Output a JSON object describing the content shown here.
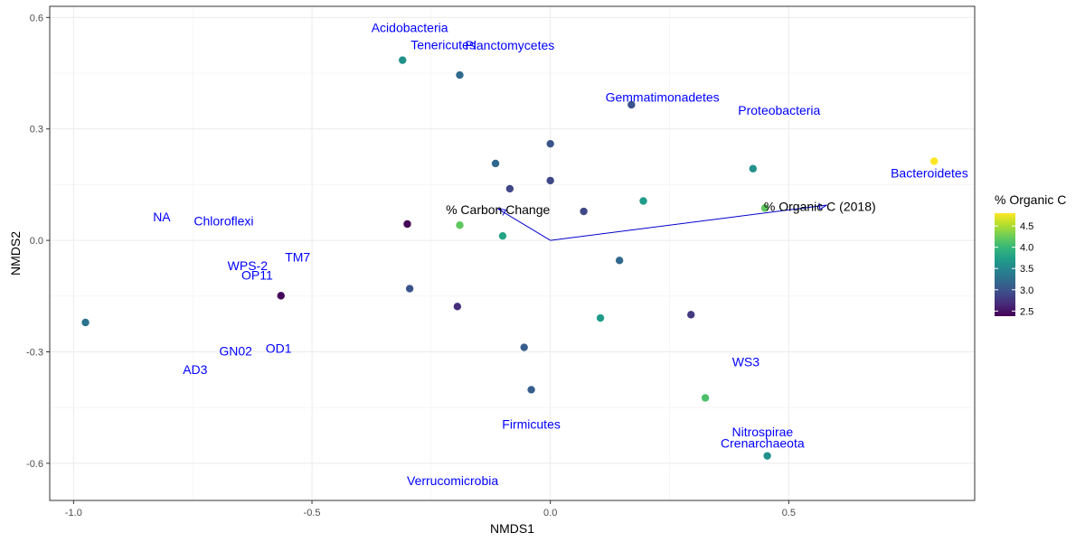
{
  "chart_data": {
    "type": "scatter",
    "xlabel": "NMDS1",
    "ylabel": "NMDS2",
    "xlim": [
      -1.05,
      0.89
    ],
    "ylim": [
      -0.7,
      0.63
    ],
    "xticks": [
      -1.0,
      -0.5,
      0.0,
      0.5
    ],
    "xtick_labels": [
      "-1.0",
      "-0.5",
      "0.0",
      "0.5"
    ],
    "yticks": [
      -0.6,
      -0.3,
      0.0,
      0.3,
      0.6
    ],
    "ytick_labels": [
      "-0.6",
      "-0.3",
      "0.0",
      "0.3",
      "0.6"
    ],
    "grid": true,
    "legend": {
      "title": "% Organic C",
      "placement": "right",
      "min": 2.38,
      "max": 4.8,
      "ticks": [
        2.5,
        3.0,
        3.5,
        4.0,
        4.5
      ],
      "tick_labels": [
        "2.5",
        "3.0",
        "3.5",
        "4.0",
        "4.5"
      ],
      "colors": [
        "#440154",
        "#482878",
        "#3E4A89",
        "#31688E",
        "#26828E",
        "#1F9E89",
        "#35B779",
        "#6DCD59",
        "#B4DE2C",
        "#FDE725"
      ]
    },
    "points": [
      {
        "x": -0.31,
        "y": 0.485,
        "c": 3.6
      },
      {
        "x": -0.19,
        "y": 0.445,
        "c": 3.2
      },
      {
        "x": 0.17,
        "y": 0.365,
        "c": 3.0
      },
      {
        "x": 0.0,
        "y": 0.26,
        "c": 3.0
      },
      {
        "x": -0.115,
        "y": 0.207,
        "c": 3.2
      },
      {
        "x": 0.425,
        "y": 0.193,
        "c": 3.6
      },
      {
        "x": 0.805,
        "y": 0.213,
        "c": 4.8
      },
      {
        "x": 0.0,
        "y": 0.161,
        "c": 2.9
      },
      {
        "x": -0.085,
        "y": 0.139,
        "c": 2.9
      },
      {
        "x": 0.195,
        "y": 0.106,
        "c": 3.7
      },
      {
        "x": 0.07,
        "y": 0.078,
        "c": 2.9
      },
      {
        "x": 0.45,
        "y": 0.087,
        "c": 4.2
      },
      {
        "x": -0.3,
        "y": 0.044,
        "c": 2.4
      },
      {
        "x": -0.19,
        "y": 0.041,
        "c": 4.2
      },
      {
        "x": -0.1,
        "y": 0.012,
        "c": 3.8
      },
      {
        "x": 0.145,
        "y": -0.054,
        "c": 3.2
      },
      {
        "x": -0.295,
        "y": -0.13,
        "c": 3.0
      },
      {
        "x": -0.565,
        "y": -0.149,
        "c": 2.4
      },
      {
        "x": -0.195,
        "y": -0.178,
        "c": 2.7
      },
      {
        "x": 0.295,
        "y": -0.2,
        "c": 2.8
      },
      {
        "x": 0.105,
        "y": -0.209,
        "c": 3.7
      },
      {
        "x": -0.975,
        "y": -0.221,
        "c": 3.3
      },
      {
        "x": -0.055,
        "y": -0.288,
        "c": 3.1
      },
      {
        "x": -0.04,
        "y": -0.402,
        "c": 3.1
      },
      {
        "x": 0.325,
        "y": -0.424,
        "c": 4.1
      },
      {
        "x": 0.455,
        "y": -0.58,
        "c": 3.6
      }
    ],
    "taxa_labels": [
      {
        "text": "Acidobacteria",
        "x": -0.295,
        "y": 0.573
      },
      {
        "text": "Tenericutes",
        "x": -0.225,
        "y": 0.527
      },
      {
        "text": "Planctomycetes",
        "x": -0.085,
        "y": 0.525
      },
      {
        "text": "Gemmatimonadetes",
        "x": 0.235,
        "y": 0.386
      },
      {
        "text": "Proteobacteria",
        "x": 0.48,
        "y": 0.35
      },
      {
        "text": "Bacteroidetes",
        "x": 0.795,
        "y": 0.182
      },
      {
        "text": "NA",
        "x": -0.815,
        "y": 0.063
      },
      {
        "text": "Chloroflexi",
        "x": -0.685,
        "y": 0.052
      },
      {
        "text": "TM7",
        "x": -0.53,
        "y": -0.045
      },
      {
        "text": "WPS-2",
        "x": -0.635,
        "y": -0.068
      },
      {
        "text": "OP11",
        "x": -0.615,
        "y": -0.093
      },
      {
        "text": "OD1",
        "x": -0.57,
        "y": -0.29
      },
      {
        "text": "GN02",
        "x": -0.66,
        "y": -0.297
      },
      {
        "text": "AD3",
        "x": -0.745,
        "y": -0.347
      },
      {
        "text": "WS3",
        "x": 0.41,
        "y": -0.327
      },
      {
        "text": "Firmicutes",
        "x": -0.04,
        "y": -0.495
      },
      {
        "text": "Nitrospirae",
        "x": 0.445,
        "y": -0.515
      },
      {
        "text": "Crenarchaeota",
        "x": 0.445,
        "y": -0.546
      },
      {
        "text": "Verrucomicrobia",
        "x": -0.205,
        "y": -0.646
      }
    ],
    "vectors": [
      {
        "label": "% Carbon Change",
        "x_end": -0.11,
        "y_end": 0.085,
        "label_x": -0.11,
        "label_y": 0.083,
        "anchor": "middle"
      },
      {
        "label": "% Organic C (2018)",
        "x_end": 0.58,
        "y_end": 0.095,
        "label_x": 0.448,
        "label_y": 0.091,
        "anchor": "start"
      }
    ]
  }
}
